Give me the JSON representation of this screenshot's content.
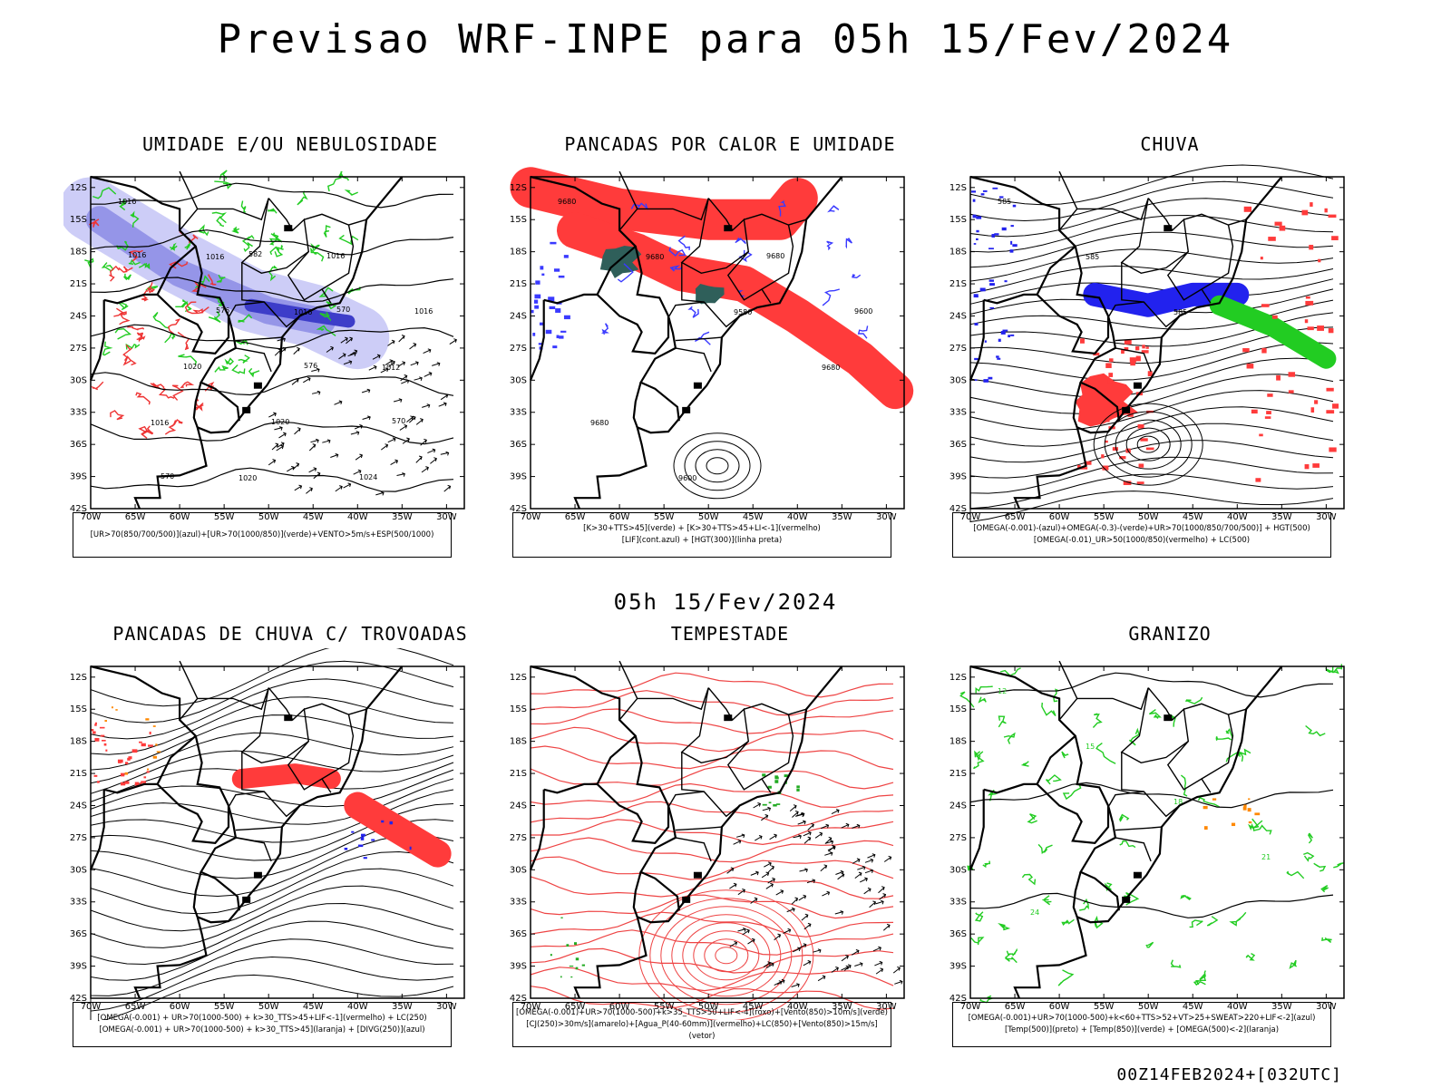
{
  "title": "Previsao WRF-INPE  para 05h 15/Fev/2024",
  "middle_title": "05h 15/Fev/2024",
  "footer": "00Z14FEB2024+[032UTC]",
  "axes": {
    "lat_labels": [
      "12S",
      "15S",
      "18S",
      "21S",
      "24S",
      "27S",
      "30S",
      "33S",
      "36S",
      "39S",
      "42S"
    ],
    "lon_labels": [
      "70W",
      "65W",
      "60W",
      "55W",
      "50W",
      "45W",
      "40W",
      "35W",
      "30W"
    ]
  },
  "panels": [
    {
      "title": "UMIDADE E/OU NEBULOSIDADE",
      "legend": [
        "[UR>70(850/700/500)](azul)+[UR>70(1000/850)](verde)+VENTO>5m/s+ESP(500/1000)"
      ],
      "contour_labels": [
        "1016",
        "1016",
        "1016",
        "1012",
        "1016",
        "1020",
        "1016",
        "1016",
        "1020",
        "1020",
        "1024",
        "1016",
        "576",
        "576",
        "570",
        "570",
        "582",
        "570"
      ],
      "colors": {
        "blue": "#8888ee",
        "green": "#22cc22",
        "red": "#ee3333"
      }
    },
    {
      "title": "PANCADAS POR CALOR E UMIDADE",
      "legend": [
        "[K>30+TTS>45](verde) + [K>30+TTS>45+LI<-1](vermelho)",
        "[LIF](cont.azul) + [HGT(300)](linha preta)"
      ],
      "contour_labels": [
        "9680",
        "9680",
        "9580",
        "9680",
        "9680",
        "9600",
        "9680",
        "9600"
      ],
      "colors": {
        "red": "#ff3b3b",
        "teal": "#2f5f5a",
        "blue": "#3a3aff"
      }
    },
    {
      "title": "CHUVA",
      "legend": [
        "[OMEGA(-0.001)-(azul)+OMEGA(-0.3)-(verde)+UR>70(1000/850/700/500)] + HGT(500)",
        "[OMEGA(-0.01)_UR>50(1000/850)(vermelho) + LC(500)"
      ],
      "contour_labels": [
        "585",
        "585",
        "585"
      ],
      "colors": {
        "red": "#ff3b3b",
        "blue": "#2222ee",
        "green": "#22cc22"
      }
    },
    {
      "title": "PANCADAS DE CHUVA C/ TROVOADAS",
      "legend": [
        "[OMEGA(-0.001) + UR>70(1000-500) + k>30_TTS>45+LIF<-1](vermelho) + LC(250)",
        "[OMEGA(-0.001) + UR>70(1000-500) + k>30_TTS>45](laranja) + [DIVG(250)](azul)"
      ],
      "contour_labels": [],
      "colors": {
        "red": "#ff3b3b",
        "blue": "#2222ee",
        "orange": "#ff8800"
      }
    },
    {
      "title": "TEMPESTADE",
      "legend": [
        "[OMEGA(-0.001)+UR>70(1000-500)+k>35_TTS>50+LIF<-4](roxo)+[Vento(850)>10m/s](verde)",
        "[CJ(250)>30m/s](amarelo)+[Agua_P(40-60mm)](vermelho)+LC(850)+[Vento(850)>15m/s](vetor)"
      ],
      "contour_labels": [],
      "colors": {
        "red": "#ee4444",
        "green": "#22aa22"
      }
    },
    {
      "title": "GRANIZO",
      "legend": [
        "[OMEGA(-0.001)+UR>70(1000-500)+k<60+TTS>52+VT>25+SWEAT>220+LIF<-2](azul)",
        "[Temp(500)](preto) + [Temp(850)](verde) + [OMEGA(500)<-2](laranja)"
      ],
      "contour_labels": [
        "12",
        "15",
        "18",
        "21",
        "24"
      ],
      "colors": {
        "green": "#22cc22",
        "orange": "#ff8800"
      }
    }
  ]
}
